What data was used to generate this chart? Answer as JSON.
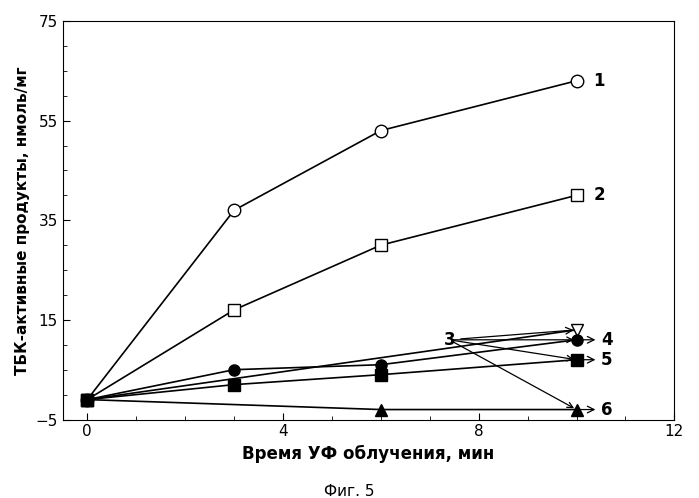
{
  "series": [
    {
      "label": "1",
      "x": [
        0,
        3,
        6,
        10
      ],
      "y": [
        -1,
        37,
        53,
        63
      ],
      "color": "black",
      "marker": "o",
      "markerfacecolor": "white",
      "markeredgecolor": "black",
      "markersize": 9,
      "linewidth": 1.2
    },
    {
      "label": "2",
      "x": [
        0,
        3,
        6,
        10
      ],
      "y": [
        -1,
        17,
        30,
        40
      ],
      "color": "black",
      "marker": "s",
      "markerfacecolor": "white",
      "markeredgecolor": "black",
      "markersize": 8,
      "linewidth": 1.2
    },
    {
      "label": "3",
      "x": [
        0,
        10
      ],
      "y": [
        -1,
        13
      ],
      "color": "black",
      "marker": "v",
      "markerfacecolor": "white",
      "markeredgecolor": "black",
      "markersize": 8,
      "linewidth": 1.2
    },
    {
      "label": "4",
      "x": [
        0,
        3,
        6,
        10
      ],
      "y": [
        -1,
        5,
        6,
        11
      ],
      "color": "black",
      "marker": "o",
      "markerfacecolor": "black",
      "markeredgecolor": "black",
      "markersize": 8,
      "linewidth": 1.2
    },
    {
      "label": "5",
      "x": [
        0,
        3,
        6,
        10
      ],
      "y": [
        -1,
        2,
        4,
        7
      ],
      "color": "black",
      "marker": "s",
      "markerfacecolor": "black",
      "markeredgecolor": "black",
      "markersize": 8,
      "linewidth": 1.2
    },
    {
      "label": "6",
      "x": [
        0,
        6,
        10
      ],
      "y": [
        -1,
        -3,
        -3
      ],
      "color": "black",
      "marker": "^",
      "markerfacecolor": "black",
      "markeredgecolor": "black",
      "markersize": 8,
      "linewidth": 1.2
    }
  ],
  "xlabel": "Время УФ облучения, мин",
  "ylabel": "ТБК-активные продукты, нмоль/мг",
  "caption": "Фиг. 5",
  "xlim": [
    -0.5,
    12
  ],
  "ylim": [
    -5,
    75
  ],
  "xticks": [
    0,
    4,
    8,
    12
  ],
  "yticks": [
    -5,
    15,
    35,
    55,
    75
  ],
  "background_color": "#ffffff",
  "label_fontsize": 12,
  "axis_fontsize": 11,
  "xlabel_fontsize": 12,
  "ylabel_fontsize": 11
}
